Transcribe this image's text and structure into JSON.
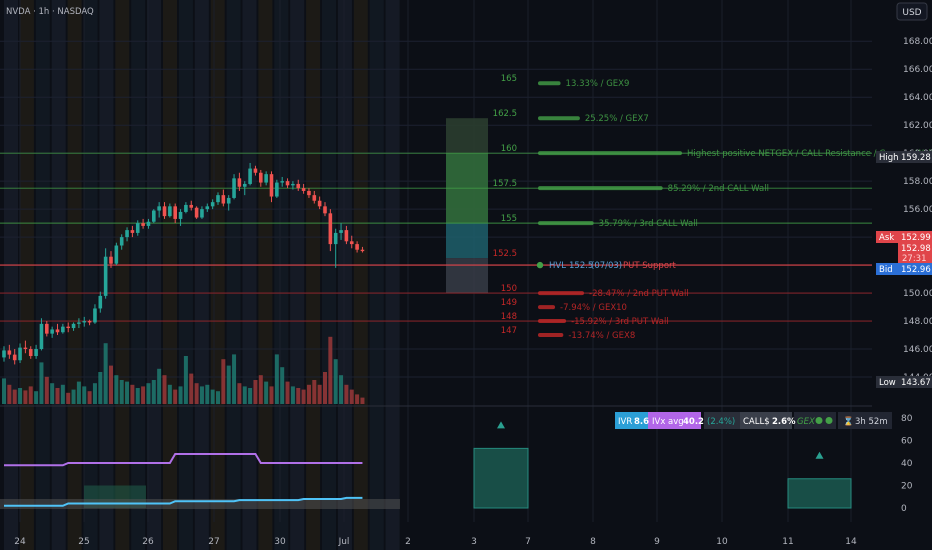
{
  "symbol": "NVDA · 1h · NASDAQ",
  "currency": "USD",
  "colors": {
    "bg": "#0c0f16",
    "up": "#26a69a",
    "down": "#ef5350",
    "green": "#43a047",
    "red": "#c62828",
    "purple": "#b070e8",
    "blue": "#4fc3f7",
    "grey": "#777777"
  },
  "chart_data": {
    "type": "line",
    "price_axis": {
      "ticks": [
        "168.00",
        "166.00",
        "164.00",
        "162.00",
        "160.00",
        "158.00",
        "156.00",
        "154.00",
        "152.00",
        "150.00",
        "148.00",
        "146.00",
        "144.00"
      ],
      "ylim": [
        142.5,
        169.5
      ]
    },
    "date_axis": [
      "24",
      "25",
      "26",
      "27",
      "30",
      "Jul",
      "2",
      "3",
      "7",
      "8",
      "9",
      "10",
      "11",
      "14"
    ],
    "levels": [
      {
        "strike": "165",
        "price": 165,
        "text": "13.33% / GEX9",
        "kind": "call",
        "bar": 0.12
      },
      {
        "strike": "162.5",
        "price": 162.5,
        "text": "25.25% / GEX7",
        "kind": "call",
        "bar": 0.26
      },
      {
        "strike": "160",
        "price": 160,
        "text": "Highest positive NETGEX / CALL Resistance / Gamma Wall",
        "kind": "call",
        "bar": 1.0
      },
      {
        "strike": "157.5",
        "price": 157.5,
        "text": "85.29% / 2nd CALL Wall",
        "kind": "call",
        "bar": 0.86
      },
      {
        "strike": "155",
        "price": 155,
        "text": "35.79% / 3rd CALL Wall",
        "kind": "call",
        "bar": 0.36
      },
      {
        "strike": "152.5",
        "price": 152.5,
        "text": "PUT Support",
        "kind": "put",
        "bar": 0.0
      },
      {
        "strike": "150",
        "price": 150,
        "text": "-28.47% / 2nd PUT Wall",
        "kind": "put",
        "bar": 0.29
      },
      {
        "strike": "149",
        "price": 149,
        "text": "-7.94% / GEX10",
        "kind": "put",
        "bar": 0.08
      },
      {
        "strike": "148",
        "price": 148,
        "text": "-15.92% / 3rd PUT Wall",
        "kind": "put",
        "bar": 0.16
      },
      {
        "strike": "147",
        "price": 147,
        "text": "-13.74% / GEX8",
        "kind": "put",
        "bar": 0.14
      }
    ],
    "hvl_label": "HVL",
    "hvl_value": "152.5",
    "hvl_date": "(07/03)",
    "price_tags": {
      "high_label": "High",
      "high_value": "159.28",
      "ask_label": "Ask",
      "ask_value": "152.99",
      "last_value": "152.98",
      "countdown": "27:31",
      "bid_label": "Bid",
      "bid_value": "152.96",
      "low_label": "Low",
      "low_value": "143.67"
    },
    "candles": [
      [
        145.4,
        146.2,
        145.1,
        145.9
      ],
      [
        145.9,
        146.3,
        145.3,
        145.6
      ],
      [
        145.6,
        146.0,
        144.9,
        145.2
      ],
      [
        145.2,
        146.4,
        145.0,
        146.1
      ],
      [
        146.1,
        146.6,
        145.7,
        146.0
      ],
      [
        146.0,
        146.2,
        145.3,
        145.5
      ],
      [
        145.5,
        146.3,
        145.3,
        146.0
      ],
      [
        146.0,
        148.2,
        145.9,
        147.8
      ],
      [
        147.8,
        148.0,
        146.9,
        147.1
      ],
      [
        147.1,
        147.6,
        146.8,
        147.4
      ],
      [
        147.4,
        147.8,
        147.0,
        147.2
      ],
      [
        147.2,
        147.8,
        147.1,
        147.6
      ],
      [
        147.6,
        147.9,
        147.2,
        147.5
      ],
      [
        147.5,
        147.9,
        147.3,
        147.8
      ],
      [
        147.8,
        148.2,
        147.5,
        147.9
      ],
      [
        147.9,
        148.3,
        147.6,
        148.0
      ],
      [
        148.0,
        148.1,
        147.7,
        147.9
      ],
      [
        147.9,
        149.2,
        147.8,
        148.9
      ],
      [
        148.9,
        150.1,
        148.6,
        149.8
      ],
      [
        149.8,
        153.2,
        149.6,
        152.6
      ],
      [
        152.6,
        153.0,
        151.8,
        152.1
      ],
      [
        152.1,
        153.6,
        152.0,
        153.4
      ],
      [
        153.4,
        154.2,
        153.1,
        154.0
      ],
      [
        154.0,
        154.7,
        153.7,
        154.5
      ],
      [
        154.5,
        154.8,
        154.0,
        154.3
      ],
      [
        154.3,
        155.2,
        154.1,
        155.0
      ],
      [
        155.0,
        155.3,
        154.6,
        154.8
      ],
      [
        154.8,
        155.3,
        154.6,
        155.1
      ],
      [
        155.1,
        156.0,
        155.0,
        155.9
      ],
      [
        155.9,
        156.5,
        155.4,
        156.2
      ],
      [
        156.2,
        156.5,
        155.3,
        155.5
      ],
      [
        155.5,
        156.4,
        155.4,
        156.2
      ],
      [
        156.2,
        156.4,
        155.0,
        155.3
      ],
      [
        155.3,
        156.0,
        154.8,
        155.8
      ],
      [
        155.8,
        156.5,
        155.7,
        156.3
      ],
      [
        156.3,
        156.6,
        155.9,
        156.1
      ],
      [
        156.1,
        156.2,
        155.3,
        155.4
      ],
      [
        155.4,
        156.2,
        155.3,
        156.0
      ],
      [
        156.0,
        156.4,
        155.8,
        156.2
      ],
      [
        156.2,
        156.7,
        156.0,
        156.5
      ],
      [
        156.5,
        157.2,
        156.3,
        157.0
      ],
      [
        157.0,
        157.4,
        156.2,
        156.4
      ],
      [
        156.4,
        157.0,
        155.9,
        156.8
      ],
      [
        156.8,
        158.5,
        156.7,
        158.2
      ],
      [
        158.2,
        158.6,
        157.3,
        157.6
      ],
      [
        157.6,
        158.0,
        157.0,
        157.8
      ],
      [
        157.8,
        159.3,
        157.7,
        158.9
      ],
      [
        158.9,
        159.1,
        158.4,
        158.6
      ],
      [
        158.6,
        158.8,
        157.6,
        157.9
      ],
      [
        157.9,
        158.7,
        157.7,
        158.5
      ],
      [
        158.5,
        158.7,
        156.5,
        156.9
      ],
      [
        156.9,
        158.1,
        156.8,
        157.9
      ],
      [
        157.9,
        158.3,
        157.6,
        158.0
      ],
      [
        158.0,
        158.2,
        157.5,
        157.7
      ],
      [
        157.7,
        158.0,
        157.4,
        157.8
      ],
      [
        157.8,
        158.1,
        157.3,
        157.5
      ],
      [
        157.5,
        157.8,
        157.1,
        157.3
      ],
      [
        157.3,
        157.5,
        156.8,
        157.0
      ],
      [
        157.0,
        157.3,
        156.4,
        156.6
      ],
      [
        156.6,
        156.9,
        156.0,
        156.2
      ],
      [
        156.2,
        156.5,
        155.5,
        155.7
      ],
      [
        155.7,
        156.0,
        153.0,
        153.5
      ],
      [
        153.5,
        154.6,
        151.8,
        154.3
      ],
      [
        154.3,
        155.0,
        153.8,
        154.5
      ],
      [
        154.5,
        154.8,
        153.5,
        153.7
      ],
      [
        153.7,
        154.1,
        153.2,
        153.5
      ],
      [
        153.5,
        153.7,
        152.9,
        153.1
      ],
      [
        153.1,
        153.3,
        152.9,
        153.0
      ]
    ],
    "volume": [
      32,
      24,
      18,
      20,
      17,
      22,
      16,
      52,
      34,
      26,
      20,
      24,
      14,
      18,
      28,
      22,
      16,
      26,
      40,
      76,
      48,
      36,
      30,
      28,
      24,
      20,
      22,
      26,
      30,
      44,
      36,
      24,
      18,
      22,
      60,
      38,
      26,
      22,
      24,
      18,
      16,
      56,
      48,
      62,
      26,
      22,
      20,
      30,
      36,
      28,
      22,
      62,
      46,
      28,
      22,
      20,
      18,
      24,
      30,
      24,
      40,
      84,
      56,
      36,
      24,
      18,
      12,
      8
    ],
    "volume_ylim": [
      0,
      100
    ],
    "lower_indicator": {
      "yticks": [
        "80",
        "60",
        "40",
        "20",
        "0"
      ],
      "ylim": [
        -5,
        92
      ],
      "ivr_label": "IVR",
      "ivr_value": "8.6",
      "ivx_label": "IVx avg",
      "ivx_value": "40.2",
      "ivx_change": "(2.4%)",
      "calls_label": "CALL$",
      "calls_value": "2.6%",
      "gex_label": "GEX",
      "timer": "3h 52m",
      "purple_series": [
        38,
        38,
        38,
        38,
        38,
        38,
        38,
        38,
        38,
        38,
        38,
        38,
        40,
        40,
        40,
        40,
        40,
        40,
        40,
        40,
        40,
        40,
        40,
        40,
        40,
        40,
        40,
        40,
        40,
        40,
        40,
        40,
        48,
        48,
        48,
        48,
        48,
        48,
        48,
        48,
        48,
        48,
        48,
        48,
        48,
        48,
        48,
        48,
        40,
        40,
        40,
        40,
        40,
        40,
        40,
        40,
        40,
        40,
        40,
        40,
        40,
        40,
        40,
        40,
        40,
        40,
        40,
        40
      ],
      "blue_series": [
        2,
        2,
        2,
        2,
        2,
        2,
        2,
        2,
        2,
        2,
        2,
        2,
        4,
        4,
        4,
        4,
        4,
        4,
        4,
        4,
        4,
        4,
        4,
        4,
        4,
        4,
        4,
        4,
        4,
        4,
        4,
        4,
        6,
        6,
        6,
        6,
        6,
        6,
        6,
        6,
        6,
        6,
        6,
        6,
        7,
        7,
        7,
        7,
        7,
        7,
        7,
        7,
        7,
        7,
        7,
        7,
        8,
        8,
        8,
        8,
        8,
        8,
        8,
        8,
        9,
        9,
        9,
        9
      ],
      "forecast_boxes": [
        {
          "from": "3",
          "to": "7",
          "value": 53
        },
        {
          "from": "11",
          "to": "14",
          "value": 26
        }
      ]
    }
  }
}
